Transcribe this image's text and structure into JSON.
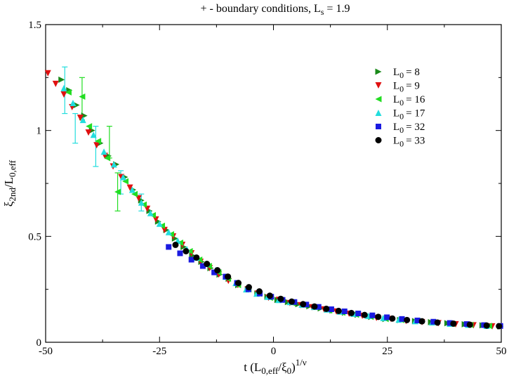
{
  "chart_data": {
    "type": "scatter",
    "title": "+ - boundary conditions, L",
    "title_sub": "s",
    "title_tail": " = 1.9",
    "xlabel": {
      "prefix": "t (L",
      "sub1": "0,eff",
      "mid": "/ξ",
      "sub2": "0",
      "close": ")",
      "sup": "1/ν"
    },
    "ylabel": {
      "main": "ξ",
      "sub": "2nd",
      "mid": "/L",
      "sub2": "0,eff"
    },
    "xlim": [
      -50,
      50
    ],
    "ylim": [
      0,
      1.5
    ],
    "xticks": [
      -50,
      -25,
      0,
      25,
      50
    ],
    "xtick_labels": [
      "-50",
      "-25",
      "0",
      "25",
      "50"
    ],
    "yticks": [
      0,
      0.5,
      1,
      1.5
    ],
    "ytick_labels": [
      "0",
      "0.5",
      "1",
      "1.5"
    ],
    "legend_position": "top-right",
    "series": [
      {
        "name": "L0 = 8",
        "legend_prefix": "L",
        "legend_sub": "0",
        "legend_value": "=    8",
        "color": "#1a8a1a",
        "marker": "triangle-right",
        "points": [
          [
            -46.5,
            1.24
          ],
          [
            -44.8,
            1.19
          ],
          [
            -43.2,
            1.12
          ],
          [
            -41.5,
            1.07
          ],
          [
            -39.8,
            1.0
          ],
          [
            -38.0,
            0.94
          ],
          [
            -36.2,
            0.88
          ],
          [
            -34.5,
            0.84
          ],
          [
            -32.6,
            0.78
          ],
          [
            -30.8,
            0.72
          ],
          [
            -29.0,
            0.67
          ],
          [
            -27.2,
            0.62
          ],
          [
            -25.3,
            0.57
          ],
          [
            -23.5,
            0.53
          ],
          [
            -21.6,
            0.49
          ],
          [
            -19.7,
            0.45
          ],
          [
            -17.8,
            0.41
          ],
          [
            -15.8,
            0.38
          ],
          [
            -13.8,
            0.35
          ],
          [
            -11.8,
            0.32
          ],
          [
            -9.8,
            0.3
          ],
          [
            -7.7,
            0.27
          ],
          [
            -5.6,
            0.25
          ],
          [
            -3.5,
            0.23
          ],
          [
            -1.3,
            0.215
          ],
          [
            0.9,
            0.2
          ],
          [
            3.2,
            0.19
          ],
          [
            5.5,
            0.18
          ],
          [
            7.9,
            0.17
          ],
          [
            10.4,
            0.16
          ],
          [
            13.0,
            0.15
          ],
          [
            15.7,
            0.14
          ],
          [
            18.5,
            0.13
          ],
          [
            21.5,
            0.12
          ],
          [
            24.6,
            0.11
          ],
          [
            27.8,
            0.105
          ],
          [
            31.1,
            0.1
          ],
          [
            34.6,
            0.095
          ],
          [
            38.2,
            0.09
          ],
          [
            42.0,
            0.085
          ],
          [
            45.9,
            0.08
          ],
          [
            49.8,
            0.075
          ]
        ]
      },
      {
        "name": "L0 = 9",
        "legend_prefix": "L",
        "legend_sub": "0",
        "legend_value": "=    9",
        "color": "#e01010",
        "marker": "triangle-down",
        "points": [
          [
            -49.5,
            1.27
          ],
          [
            -47.8,
            1.22
          ],
          [
            -46.0,
            1.17
          ],
          [
            -44.2,
            1.11
          ],
          [
            -42.4,
            1.06
          ],
          [
            -40.6,
            0.99
          ],
          [
            -38.8,
            0.93
          ],
          [
            -37.0,
            0.88
          ],
          [
            -35.2,
            0.83
          ],
          [
            -33.4,
            0.78
          ],
          [
            -31.5,
            0.73
          ],
          [
            -29.6,
            0.68
          ],
          [
            -27.7,
            0.63
          ],
          [
            -25.8,
            0.58
          ],
          [
            -23.9,
            0.53
          ],
          [
            -22.0,
            0.5
          ],
          [
            -20.0,
            0.46
          ],
          [
            -18.0,
            0.42
          ],
          [
            -16.0,
            0.38
          ],
          [
            -14.0,
            0.35
          ],
          [
            -12.0,
            0.32
          ],
          [
            -9.9,
            0.29
          ],
          [
            -7.8,
            0.27
          ],
          [
            -5.6,
            0.25
          ],
          [
            -3.4,
            0.23
          ],
          [
            -1.1,
            0.21
          ],
          [
            1.2,
            0.2
          ],
          [
            3.6,
            0.185
          ],
          [
            6.0,
            0.175
          ],
          [
            8.5,
            0.165
          ],
          [
            11.1,
            0.155
          ],
          [
            13.8,
            0.145
          ],
          [
            16.6,
            0.135
          ],
          [
            19.5,
            0.125
          ],
          [
            22.6,
            0.115
          ],
          [
            25.8,
            0.11
          ],
          [
            29.1,
            0.1
          ],
          [
            32.6,
            0.095
          ],
          [
            36.2,
            0.09
          ],
          [
            40.0,
            0.085
          ],
          [
            43.9,
            0.08
          ],
          [
            48.0,
            0.075
          ]
        ]
      },
      {
        "name": "L0 = 16",
        "legend_prefix": "L",
        "legend_sub": "0",
        "legend_value": "= 16",
        "color": "#22dd22",
        "marker": "triangle-left",
        "points": [
          [
            -45.0,
            1.18
          ],
          [
            -42.0,
            1.16
          ],
          [
            -40.5,
            1.02
          ],
          [
            -38.5,
            0.95
          ],
          [
            -36.5,
            0.87
          ],
          [
            -34.2,
            0.71
          ],
          [
            -32.5,
            0.76
          ],
          [
            -30.5,
            0.7
          ],
          [
            -28.5,
            0.65
          ],
          [
            -26.5,
            0.6
          ],
          [
            -24.5,
            0.55
          ],
          [
            -22.5,
            0.51
          ],
          [
            -20.5,
            0.47
          ],
          [
            -18.4,
            0.43
          ],
          [
            -16.3,
            0.39
          ],
          [
            -14.2,
            0.36
          ],
          [
            -12.1,
            0.33
          ],
          [
            -10.0,
            0.3
          ],
          [
            -7.8,
            0.27
          ],
          [
            -5.5,
            0.25
          ],
          [
            -3.2,
            0.23
          ],
          [
            -0.8,
            0.21
          ],
          [
            1.6,
            0.2
          ],
          [
            4.1,
            0.185
          ],
          [
            6.7,
            0.175
          ],
          [
            9.4,
            0.165
          ],
          [
            12.2,
            0.15
          ],
          [
            15.1,
            0.14
          ],
          [
            18.1,
            0.13
          ],
          [
            21.3,
            0.12
          ],
          [
            24.6,
            0.11
          ],
          [
            28.0,
            0.105
          ],
          [
            31.6,
            0.1
          ],
          [
            35.3,
            0.092
          ],
          [
            39.2,
            0.087
          ],
          [
            43.2,
            0.082
          ],
          [
            47.3,
            0.077
          ]
        ]
      },
      {
        "name": "L0 = 17",
        "legend_prefix": "L",
        "legend_sub": "0",
        "legend_value": "= 17",
        "color": "#22dddd",
        "marker": "triangle-up",
        "points": [
          [
            -46.0,
            1.2
          ],
          [
            -44.0,
            1.13
          ],
          [
            -41.8,
            1.05
          ],
          [
            -39.5,
            0.98
          ],
          [
            -37.2,
            0.9
          ],
          [
            -35.0,
            0.84
          ],
          [
            -33.0,
            0.78
          ],
          [
            -31.0,
            0.72
          ],
          [
            -29.0,
            0.66
          ],
          [
            -27.0,
            0.61
          ],
          [
            -25.0,
            0.56
          ],
          [
            -23.0,
            0.52
          ],
          [
            -21.0,
            0.48
          ],
          [
            -19.0,
            0.44
          ],
          [
            -16.9,
            0.4
          ],
          [
            -14.8,
            0.37
          ],
          [
            -12.7,
            0.34
          ],
          [
            -10.5,
            0.31
          ],
          [
            -8.3,
            0.28
          ],
          [
            -6.0,
            0.25
          ],
          [
            -3.7,
            0.23
          ],
          [
            -1.3,
            0.215
          ],
          [
            1.1,
            0.2
          ],
          [
            3.6,
            0.19
          ],
          [
            6.2,
            0.178
          ],
          [
            8.9,
            0.167
          ],
          [
            11.7,
            0.155
          ],
          [
            14.6,
            0.145
          ],
          [
            17.6,
            0.135
          ],
          [
            20.8,
            0.125
          ],
          [
            24.1,
            0.115
          ],
          [
            27.5,
            0.107
          ],
          [
            31.1,
            0.1
          ],
          [
            34.8,
            0.094
          ],
          [
            38.7,
            0.088
          ],
          [
            42.7,
            0.083
          ],
          [
            46.8,
            0.078
          ]
        ]
      },
      {
        "name": "L0 = 32",
        "legend_prefix": "L",
        "legend_sub": "0",
        "legend_value": "= 32",
        "color": "#1a1ae0",
        "marker": "square",
        "points": [
          [
            -23.0,
            0.45
          ],
          [
            -20.5,
            0.42
          ],
          [
            -18.0,
            0.39
          ],
          [
            -15.5,
            0.36
          ],
          [
            -13.0,
            0.33
          ],
          [
            -10.5,
            0.31
          ],
          [
            -8.0,
            0.28
          ],
          [
            -5.5,
            0.25
          ],
          [
            -3.0,
            0.23
          ],
          [
            -0.5,
            0.215
          ],
          [
            2.0,
            0.2
          ],
          [
            4.6,
            0.19
          ],
          [
            7.2,
            0.178
          ],
          [
            9.9,
            0.167
          ],
          [
            12.7,
            0.156
          ],
          [
            15.6,
            0.146
          ],
          [
            18.6,
            0.136
          ],
          [
            21.7,
            0.127
          ],
          [
            24.9,
            0.118
          ],
          [
            28.2,
            0.11
          ],
          [
            31.6,
            0.103
          ],
          [
            35.1,
            0.097
          ],
          [
            38.7,
            0.091
          ],
          [
            42.4,
            0.086
          ],
          [
            46.2,
            0.081
          ],
          [
            49.8,
            0.077
          ]
        ]
      },
      {
        "name": "L0 = 33",
        "legend_prefix": "L",
        "legend_sub": "0",
        "legend_value": "= 33",
        "color": "#000000",
        "marker": "circle",
        "points": [
          [
            -21.5,
            0.46
          ],
          [
            -19.2,
            0.43
          ],
          [
            -16.9,
            0.4
          ],
          [
            -14.6,
            0.37
          ],
          [
            -12.3,
            0.34
          ],
          [
            -10.0,
            0.31
          ],
          [
            -7.7,
            0.28
          ],
          [
            -5.4,
            0.26
          ],
          [
            -3.1,
            0.24
          ],
          [
            -0.8,
            0.22
          ],
          [
            1.6,
            0.205
          ],
          [
            4.0,
            0.192
          ],
          [
            6.5,
            0.18
          ],
          [
            9.0,
            0.169
          ],
          [
            11.6,
            0.158
          ],
          [
            14.3,
            0.148
          ],
          [
            17.1,
            0.138
          ],
          [
            20.0,
            0.129
          ],
          [
            23.0,
            0.12
          ],
          [
            26.1,
            0.112
          ],
          [
            29.3,
            0.105
          ],
          [
            32.6,
            0.099
          ],
          [
            36.0,
            0.093
          ],
          [
            39.5,
            0.088
          ],
          [
            43.1,
            0.083
          ],
          [
            46.8,
            0.079
          ],
          [
            49.5,
            0.076
          ]
        ]
      }
    ],
    "error_bars": [
      {
        "series": "L0 = 17",
        "x": -45.8,
        "y": 1.2,
        "lo": 1.08,
        "hi": 1.3
      },
      {
        "series": "L0 = 17",
        "x": -43.5,
        "y": 1.0,
        "lo": 0.94,
        "hi": 1.08
      },
      {
        "series": "L0 = 16",
        "x": -42.0,
        "y": 1.16,
        "lo": 1.05,
        "hi": 1.25
      },
      {
        "series": "L0 = 17",
        "x": -39.0,
        "y": 0.92,
        "lo": 0.83,
        "hi": 1.02
      },
      {
        "series": "L0 = 16",
        "x": -36.0,
        "y": 0.95,
        "lo": 0.87,
        "hi": 1.02
      },
      {
        "series": "L0 = 16",
        "x": -34.2,
        "y": 0.71,
        "lo": 0.62,
        "hi": 0.8
      },
      {
        "series": "L0 = 17",
        "x": -33.5,
        "y": 0.76,
        "lo": 0.7,
        "hi": 0.81
      },
      {
        "series": "L0 = 17",
        "x": -29.0,
        "y": 0.66,
        "lo": 0.62,
        "hi": 0.7
      }
    ]
  }
}
